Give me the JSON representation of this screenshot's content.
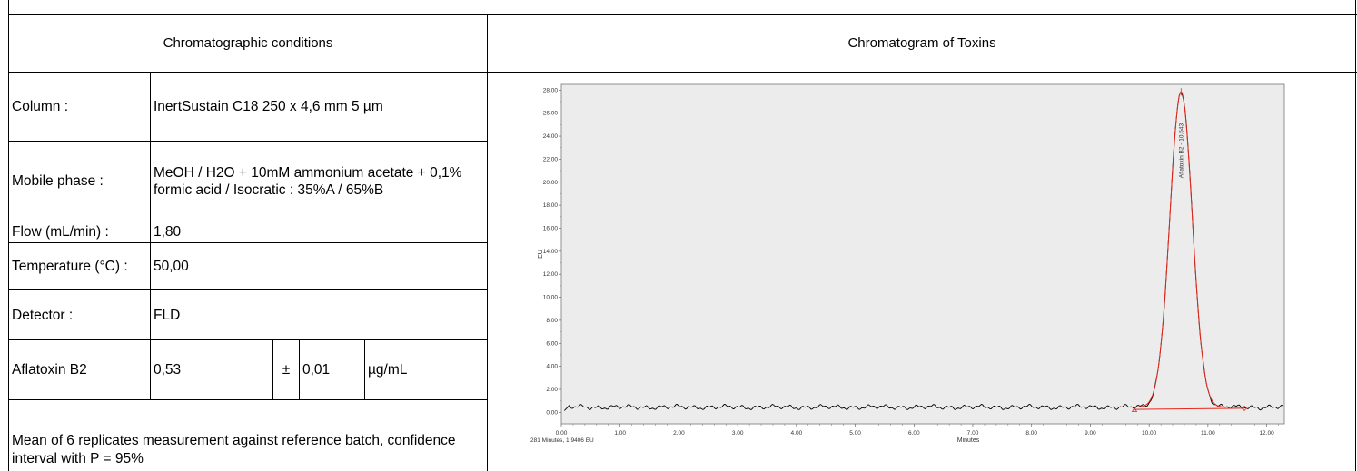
{
  "headers": {
    "left": "Chromatographic conditions",
    "right": "Chromatogram of Toxins"
  },
  "conditions": [
    {
      "label": "Column :",
      "value": "InertSustain C18 250 x 4,6 mm 5 µm"
    },
    {
      "label": "Mobile phase :",
      "value": "MeOH / H2O + 10mM ammonium acetate + 0,1% formic acid / Isocratic : 35%A / 65%B"
    },
    {
      "label": "Flow (mL/min) :",
      "value": "1,80"
    },
    {
      "label": "Temperature (°C) :",
      "value": "50,00"
    },
    {
      "label": "Detector :",
      "value": "FLD"
    }
  ],
  "result": {
    "label": "Aflatoxin B2",
    "value": "0,53",
    "pm": "±",
    "uncertainty": "0,01",
    "unit": "µg/mL"
  },
  "note": "Mean of 6 replicates measurement against reference batch, confidence interval with P = 95%",
  "chart_data": {
    "type": "line",
    "title": "",
    "xlabel": "Minutes",
    "ylabel": "EU",
    "xlim": [
      0,
      12.3
    ],
    "ylim": [
      -1,
      28.5
    ],
    "x_ticks": [
      "0.00",
      "1.00",
      "2.00",
      "3.00",
      "4.00",
      "5.00",
      "6.00",
      "7.00",
      "8.00",
      "9.00",
      "10.00",
      "11.00",
      "12.00"
    ],
    "y_ticks": [
      "0.00",
      "2.00",
      "4.00",
      "6.00",
      "8.00",
      "10.00",
      "12.00",
      "14.00",
      "16.00",
      "18.00",
      "20.00",
      "22.00",
      "24.00",
      "26.00",
      "28.00"
    ],
    "baseline": 0.45,
    "peak": {
      "name": "Aflatoxin B2 - 10.543",
      "rt": 10.543,
      "height": 27.4,
      "start": 9.75,
      "end": 11.62
    },
    "cursor_readout": "281 Minutes, 1.9406 EU",
    "colors": {
      "signal": "#000000",
      "peak": "#e8291c",
      "plot_bg": "#ececec"
    }
  }
}
